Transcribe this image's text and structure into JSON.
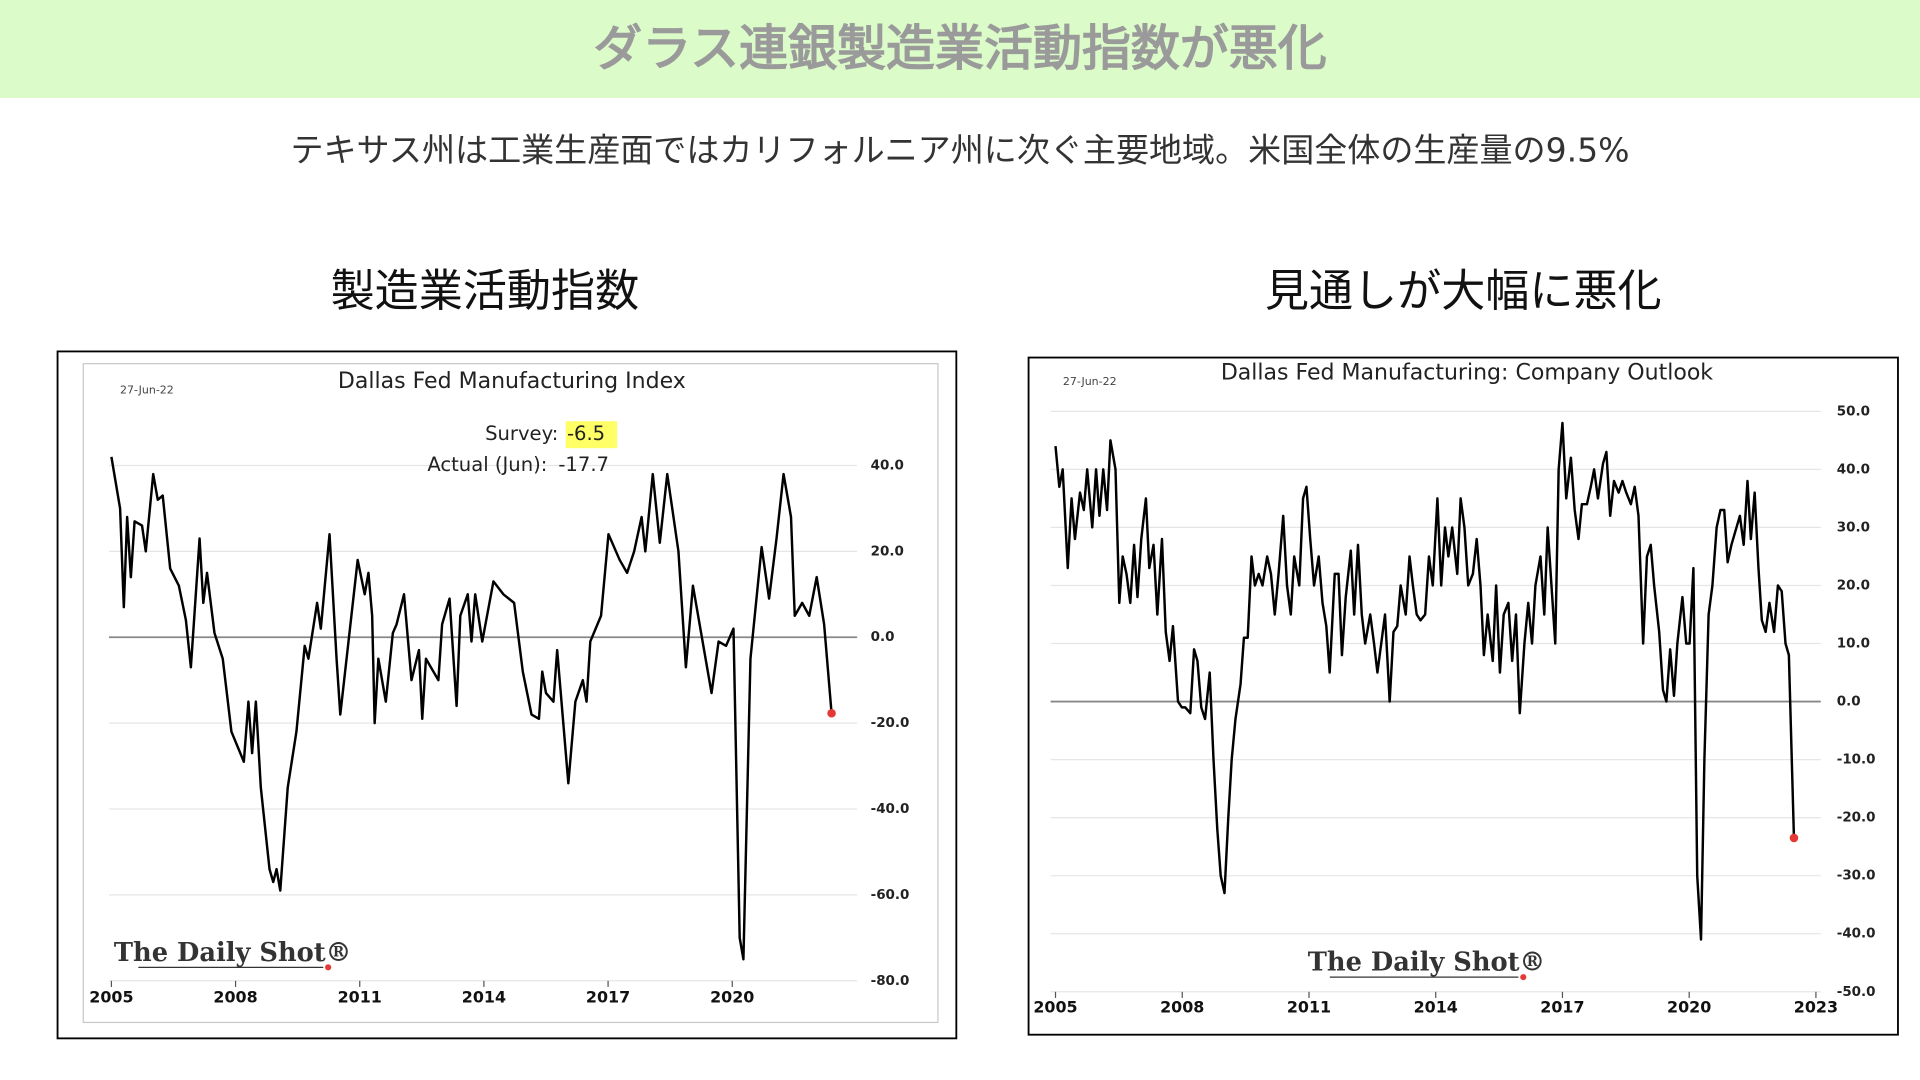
{
  "slide": {
    "title": "ダラス連銀製造業活動指数が悪化",
    "subtitle": "テキサス州は工業生産面ではカリフォルニア州に次ぐ主要地域。米国全体の生産量の9.5%"
  },
  "chart_data": [
    {
      "type": "line",
      "heading": "製造業活動指数",
      "title": "Dallas Fed Manufacturing Index",
      "date": "27-Jun-22",
      "annotations": [
        {
          "label": "Survey:",
          "value": "-6.5"
        },
        {
          "label": "Actual (Jun):",
          "value": "-17.7"
        }
      ],
      "watermark": "The Daily Shot®",
      "color": "#000000",
      "marker_color": "#e53935",
      "grid": true,
      "xlim": [
        2004.4,
        2023
      ],
      "xticks": [
        2005,
        2008,
        2011,
        2014,
        2017,
        2020
      ],
      "ylim": [
        -85,
        60
      ],
      "yticks": [
        {
          "value": 40,
          "label": "40.0"
        },
        {
          "value": 20,
          "label": "20.0"
        },
        {
          "value": 0,
          "label": "0.0"
        },
        {
          "value": -20,
          "label": "-20.0"
        },
        {
          "value": -40,
          "label": "-40.0"
        },
        {
          "value": -60,
          "label": "-60.0"
        },
        {
          "value": -80,
          "label": "-80.0"
        }
      ],
      "x": [
        2005.0,
        2005.21,
        2005.3,
        2005.38,
        2005.47,
        2005.56,
        2005.74,
        2005.83,
        2006.01,
        2006.12,
        2006.24,
        2006.42,
        2006.63,
        2006.8,
        2006.92,
        2007.13,
        2007.22,
        2007.31,
        2007.49,
        2007.69,
        2007.9,
        2008.2,
        2008.31,
        2008.4,
        2008.49,
        2008.61,
        2008.82,
        2008.91,
        2008.99,
        2009.08,
        2009.26,
        2009.47,
        2009.67,
        2009.76,
        2009.97,
        2010.06,
        2010.27,
        2010.44,
        2010.53,
        2010.74,
        2010.95,
        2011.12,
        2011.21,
        2011.3,
        2011.36,
        2011.45,
        2011.63,
        2011.8,
        2011.89,
        2012.07,
        2012.25,
        2012.43,
        2012.51,
        2012.6,
        2012.9,
        2012.99,
        2013.17,
        2013.34,
        2013.43,
        2013.61,
        2013.7,
        2013.79,
        2013.96,
        2014.23,
        2014.47,
        2014.73,
        2014.94,
        2015.15,
        2015.33,
        2015.41,
        2015.5,
        2015.68,
        2015.77,
        2016.04,
        2016.21,
        2016.39,
        2016.48,
        2016.57,
        2016.83,
        2017.01,
        2017.28,
        2017.46,
        2017.63,
        2017.81,
        2017.9,
        2018.08,
        2018.25,
        2018.43,
        2018.7,
        2018.88,
        2019.05,
        2019.32,
        2019.5,
        2019.67,
        2019.85,
        2020.03,
        2020.18,
        2020.27,
        2020.44,
        2020.71,
        2020.89,
        2021.07,
        2021.24,
        2021.42,
        2021.51,
        2021.69,
        2021.86,
        2022.04,
        2022.22,
        2022.4
      ],
      "values": [
        42,
        30,
        7,
        28,
        14,
        27,
        26,
        20,
        38,
        32,
        33,
        16,
        12,
        4,
        -7,
        23,
        8,
        15,
        1,
        -5,
        -22,
        -29,
        -15,
        -27,
        -15,
        -35,
        -54,
        -57,
        -54,
        -59,
        -35,
        -22,
        -2,
        -5,
        8,
        2,
        24,
        -5,
        -18,
        0,
        18,
        10,
        15,
        5,
        -20,
        -5,
        -15,
        1,
        3,
        10,
        -10,
        -3,
        -19,
        -5,
        -10,
        3,
        9,
        -16,
        5,
        10,
        -1,
        10,
        -1,
        13,
        10,
        8,
        -8,
        -18,
        -19,
        -8,
        -13,
        -15,
        -3,
        -34,
        -15,
        -10,
        -15,
        -1,
        5,
        24,
        18,
        15,
        20,
        28,
        20,
        38,
        22,
        38,
        20,
        -7,
        12,
        -3,
        -13,
        -1,
        -2,
        2,
        -70,
        -75,
        -5,
        21,
        9,
        23,
        38,
        28,
        5,
        8,
        5,
        14,
        3,
        -17.7
      ]
    },
    {
      "type": "line",
      "heading": "見通しが大幅に悪化",
      "title": "Dallas Fed Manufacturing: Company Outlook",
      "date": "27-Jun-22",
      "watermark": "The Daily Shot®",
      "color": "#000000",
      "marker_color": "#e53935",
      "grid": true,
      "xlim": [
        2004.5,
        2023.2
      ],
      "xticks": [
        2005,
        2008,
        2011,
        2014,
        2017,
        2020,
        2023
      ],
      "ylim": [
        -56,
        58
      ],
      "yticks": [
        {
          "value": 50,
          "label": "50.0"
        },
        {
          "value": 40,
          "label": "40.0"
        },
        {
          "value": 30,
          "label": "30.0"
        },
        {
          "value": 20,
          "label": "20.0"
        },
        {
          "value": 10,
          "label": "10.0"
        },
        {
          "value": 0,
          "label": "0.0"
        },
        {
          "value": -10,
          "label": "-10.0"
        },
        {
          "value": -20,
          "label": "-20.0"
        },
        {
          "value": -30,
          "label": "-30.0"
        },
        {
          "value": -40,
          "label": "-40.0"
        },
        {
          "value": -50,
          "label": "-50.0"
        }
      ],
      "x": [
        2005.0,
        2005.09,
        2005.17,
        2005.29,
        2005.38,
        2005.46,
        2005.58,
        2005.67,
        2005.75,
        2005.87,
        2005.96,
        2006.04,
        2006.13,
        2006.22,
        2006.3,
        2006.42,
        2006.51,
        2006.59,
        2006.68,
        2006.77,
        2006.86,
        2006.94,
        2007.03,
        2007.14,
        2007.22,
        2007.32,
        2007.41,
        2007.52,
        2007.61,
        2007.7,
        2007.78,
        2007.9,
        2007.99,
        2008.07,
        2008.19,
        2008.28,
        2008.36,
        2008.45,
        2008.54,
        2008.65,
        2008.74,
        2008.83,
        2008.91,
        2009.0,
        2009.09,
        2009.17,
        2009.26,
        2009.38,
        2009.46,
        2009.55,
        2009.64,
        2009.72,
        2009.81,
        2009.9,
        2010.01,
        2010.1,
        2010.19,
        2010.28,
        2010.39,
        2010.48,
        2010.57,
        2010.65,
        2010.77,
        2010.86,
        2010.94,
        2011.03,
        2011.12,
        2011.23,
        2011.32,
        2011.41,
        2011.49,
        2011.61,
        2011.7,
        2011.78,
        2011.87,
        2011.99,
        2012.07,
        2012.16,
        2012.25,
        2012.33,
        2012.45,
        2012.54,
        2012.62,
        2012.71,
        2012.8,
        2012.91,
        2013.0,
        2013.09,
        2013.17,
        2013.29,
        2013.38,
        2013.46,
        2013.55,
        2013.64,
        2013.75,
        2013.84,
        2013.93,
        2014.04,
        2014.13,
        2014.22,
        2014.3,
        2014.39,
        2014.51,
        2014.59,
        2014.68,
        2014.77,
        2014.88,
        2014.97,
        2015.06,
        2015.14,
        2015.23,
        2015.35,
        2015.43,
        2015.52,
        2015.61,
        2015.72,
        2015.81,
        2015.9,
        2015.99,
        2016.1,
        2016.19,
        2016.28,
        2016.36,
        2016.48,
        2016.57,
        2016.65,
        2016.74,
        2016.83,
        2016.91,
        2017.0,
        2017.09,
        2017.2,
        2017.29,
        2017.38,
        2017.46,
        2017.58,
        2017.67,
        2017.75,
        2017.84,
        2017.96,
        2018.04,
        2018.13,
        2018.22,
        2018.33,
        2018.42,
        2018.51,
        2018.62,
        2018.71,
        2018.8,
        2018.91,
        2019.0,
        2019.09,
        2019.17,
        2019.29,
        2019.38,
        2019.46,
        2019.55,
        2019.64,
        2019.72,
        2019.84,
        2019.93,
        2020.01,
        2020.1,
        2020.19,
        2020.28,
        2020.36,
        2020.46,
        2020.55,
        2020.65,
        2020.74,
        2020.83,
        2020.91,
        2021.0,
        2021.12,
        2021.2,
        2021.29,
        2021.38,
        2021.46,
        2021.55,
        2021.64,
        2021.72,
        2021.81,
        2021.9,
        2022.01,
        2022.1,
        2022.19,
        2022.28,
        2022.36,
        2022.48
      ],
      "values": [
        44,
        37,
        40,
        23,
        35,
        28,
        36,
        33,
        40,
        30,
        40,
        32,
        40,
        33,
        45,
        40,
        17,
        25,
        22,
        17,
        27,
        18,
        28,
        35,
        23,
        27,
        15,
        28,
        12,
        7,
        13,
        0,
        -1,
        -1,
        -2,
        9,
        7,
        -1,
        -3,
        5,
        -10,
        -22,
        -30,
        -33,
        -20,
        -10,
        -3,
        3,
        11,
        11,
        25,
        20,
        22,
        20,
        25,
        22,
        15,
        22,
        32,
        20,
        15,
        25,
        20,
        35,
        37,
        28,
        20,
        25,
        17,
        13,
        5,
        22,
        22,
        8,
        18,
        26,
        15,
        27,
        15,
        10,
        15,
        10,
        5,
        10,
        15,
        0,
        12,
        13,
        20,
        15,
        25,
        20,
        15,
        14,
        15,
        25,
        20,
        35,
        20,
        30,
        25,
        30,
        22,
        35,
        30,
        20,
        22,
        28,
        20,
        8,
        15,
        7,
        20,
        5,
        15,
        17,
        7,
        15,
        -2,
        10,
        17,
        10,
        20,
        25,
        15,
        30,
        20,
        10,
        40,
        48,
        35,
        42,
        33,
        28,
        34,
        34,
        37,
        40,
        35,
        41,
        43,
        32,
        38,
        36,
        38,
        36,
        34,
        37,
        32,
        10,
        25,
        27,
        20,
        12,
        2,
        0,
        9,
        1,
        10,
        18,
        10,
        10,
        23,
        -30,
        -41,
        -10,
        15,
        20,
        30,
        33,
        33,
        24,
        27,
        30,
        32,
        27,
        38,
        28,
        36,
        23,
        14,
        12,
        17,
        12,
        20,
        19,
        10,
        8,
        -23.5
      ]
    }
  ]
}
